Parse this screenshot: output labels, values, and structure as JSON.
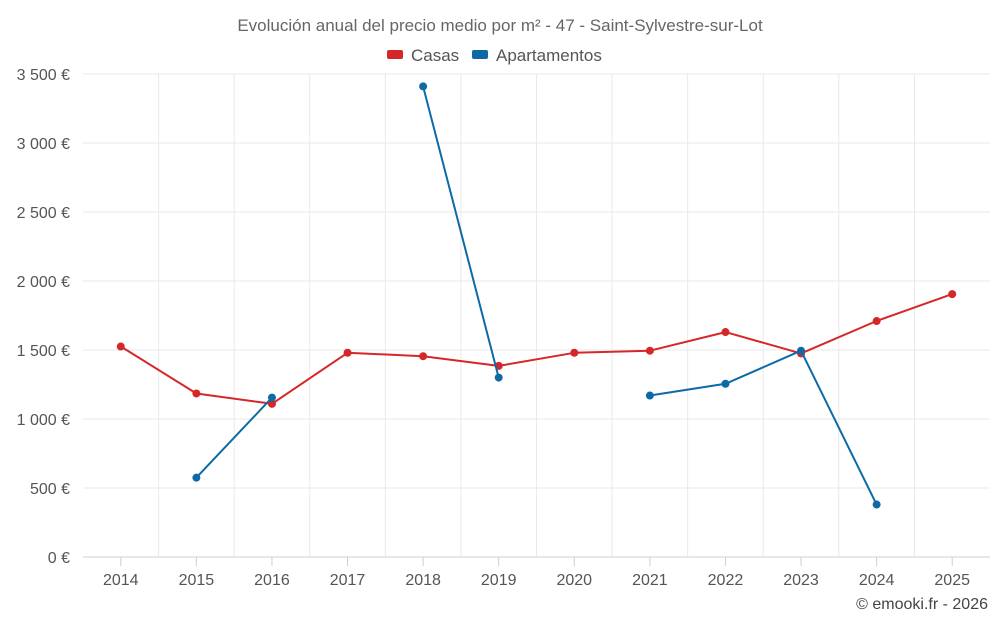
{
  "chart_data": {
    "type": "line",
    "title": "Evolución anual del precio medio por m² - 47 - Saint-Sylvestre-sur-Lot",
    "xlabel": "",
    "ylabel": "",
    "categories": [
      "2014",
      "2015",
      "2016",
      "2017",
      "2018",
      "2019",
      "2020",
      "2021",
      "2022",
      "2023",
      "2024",
      "2025"
    ],
    "ylim": [
      0,
      3500
    ],
    "yticks": [
      0,
      500,
      1000,
      1500,
      2000,
      2500,
      3000,
      3500
    ],
    "ytick_labels": [
      "0 €",
      "500 €",
      "1 000 €",
      "1 500 €",
      "2 000 €",
      "2 500 €",
      "3 000 €",
      "3 500 €"
    ],
    "grid": true,
    "legend_position": "top-center",
    "series": [
      {
        "name": "Casas",
        "color": "#d62728",
        "values": [
          1525,
          1185,
          1110,
          1480,
          1455,
          1385,
          1480,
          1495,
          1630,
          1475,
          1710,
          1905
        ]
      },
      {
        "name": "Apartamentos",
        "color": "#0d6aa5",
        "values": [
          null,
          575,
          1155,
          null,
          3410,
          1300,
          null,
          1170,
          1255,
          1495,
          380,
          null
        ]
      }
    ]
  },
  "credits": "© emooki.fr - 2026"
}
